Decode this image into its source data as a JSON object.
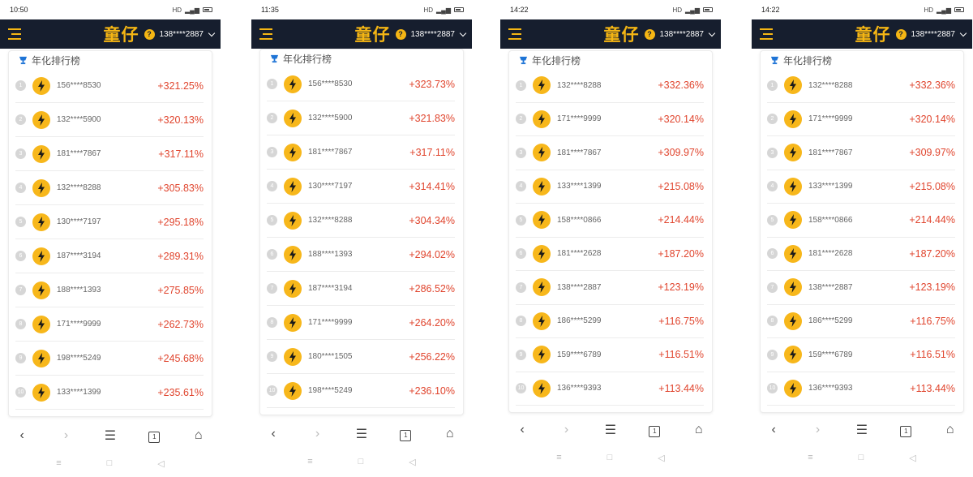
{
  "app": {
    "logo_text": "童仔",
    "board_title": "年化排行榜",
    "accent": "#f5b614",
    "header_bg": "#161e2e",
    "gain_color": "#e0452e"
  },
  "screens": [
    {
      "time": "10:50",
      "status": "HD",
      "account": "138****2887",
      "rows": [
        {
          "rank": "1",
          "phone": "156****8530",
          "pct": "+321.25%"
        },
        {
          "rank": "2",
          "phone": "132****5900",
          "pct": "+320.13%"
        },
        {
          "rank": "3",
          "phone": "181****7867",
          "pct": "+317.11%"
        },
        {
          "rank": "4",
          "phone": "132****8288",
          "pct": "+305.83%"
        },
        {
          "rank": "5",
          "phone": "130****7197",
          "pct": "+295.18%"
        },
        {
          "rank": "6",
          "phone": "187****3194",
          "pct": "+289.31%"
        },
        {
          "rank": "7",
          "phone": "188****1393",
          "pct": "+275.85%"
        },
        {
          "rank": "8",
          "phone": "171****9999",
          "pct": "+262.73%"
        },
        {
          "rank": "9",
          "phone": "198****5249",
          "pct": "+245.68%"
        },
        {
          "rank": "10",
          "phone": "133****1399",
          "pct": "+235.61%"
        }
      ]
    },
    {
      "time": "11:35",
      "status": "HD",
      "account": "138****2887",
      "rows": [
        {
          "rank": "1",
          "phone": "156****8530",
          "pct": "+323.73%"
        },
        {
          "rank": "2",
          "phone": "132****5900",
          "pct": "+321.83%"
        },
        {
          "rank": "3",
          "phone": "181****7867",
          "pct": "+317.11%"
        },
        {
          "rank": "4",
          "phone": "130****7197",
          "pct": "+314.41%"
        },
        {
          "rank": "5",
          "phone": "132****8288",
          "pct": "+304.34%"
        },
        {
          "rank": "6",
          "phone": "188****1393",
          "pct": "+294.02%"
        },
        {
          "rank": "7",
          "phone": "187****3194",
          "pct": "+286.52%"
        },
        {
          "rank": "8",
          "phone": "171****9999",
          "pct": "+264.20%"
        },
        {
          "rank": "9",
          "phone": "180****1505",
          "pct": "+256.22%"
        },
        {
          "rank": "10",
          "phone": "198****5249",
          "pct": "+236.10%"
        }
      ]
    },
    {
      "time": "14:22",
      "status": "HD",
      "account": "138****2887",
      "rows": [
        {
          "rank": "1",
          "phone": "132****8288",
          "pct": "+332.36%"
        },
        {
          "rank": "2",
          "phone": "171****9999",
          "pct": "+320.14%"
        },
        {
          "rank": "3",
          "phone": "181****7867",
          "pct": "+309.97%"
        },
        {
          "rank": "4",
          "phone": "133****1399",
          "pct": "+215.08%"
        },
        {
          "rank": "5",
          "phone": "158****0866",
          "pct": "+214.44%"
        },
        {
          "rank": "6",
          "phone": "181****2628",
          "pct": "+187.20%"
        },
        {
          "rank": "7",
          "phone": "138****2887",
          "pct": "+123.19%"
        },
        {
          "rank": "8",
          "phone": "186****5299",
          "pct": "+116.75%"
        },
        {
          "rank": "9",
          "phone": "159****6789",
          "pct": "+116.51%"
        },
        {
          "rank": "10",
          "phone": "136****9393",
          "pct": "+113.44%"
        }
      ]
    },
    {
      "time": "14:22",
      "status": "HD",
      "account": "138****2887",
      "rows": [
        {
          "rank": "1",
          "phone": "132****8288",
          "pct": "+332.36%"
        },
        {
          "rank": "2",
          "phone": "171****9999",
          "pct": "+320.14%"
        },
        {
          "rank": "3",
          "phone": "181****7867",
          "pct": "+309.97%"
        },
        {
          "rank": "4",
          "phone": "133****1399",
          "pct": "+215.08%"
        },
        {
          "rank": "5",
          "phone": "158****0866",
          "pct": "+214.44%"
        },
        {
          "rank": "6",
          "phone": "181****2628",
          "pct": "+187.20%"
        },
        {
          "rank": "7",
          "phone": "138****2887",
          "pct": "+123.19%"
        },
        {
          "rank": "8",
          "phone": "186****5299",
          "pct": "+116.75%"
        },
        {
          "rank": "9",
          "phone": "159****6789",
          "pct": "+116.51%"
        },
        {
          "rank": "10",
          "phone": "136****9393",
          "pct": "+113.44%"
        }
      ]
    }
  ],
  "browser_nav": {
    "back": "‹",
    "forward": "›",
    "menu": "☰",
    "tabs": "1",
    "home": "⌂"
  },
  "system_nav": {
    "recent": "≡",
    "home": "□",
    "back": "◁"
  }
}
